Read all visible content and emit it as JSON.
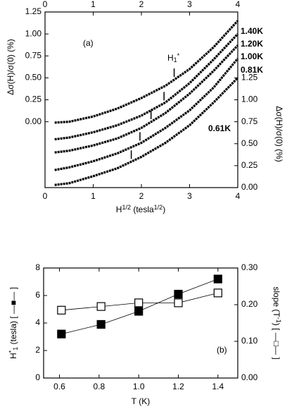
{
  "chart_data": [
    {
      "type": "line",
      "annotation": "(a)",
      "marker_label": [
        {
          "text": "H"
        },
        {
          "text": "1",
          "shift": "sub"
        },
        {
          "text": "*",
          "shift": "sup"
        }
      ],
      "xlabel": [
        {
          "text": "H"
        },
        {
          "text": "1/2",
          "shift": "sup"
        },
        {
          "text": " (tesla"
        },
        {
          "text": "1/2",
          "shift": "sup"
        },
        {
          "text": ")"
        }
      ],
      "ylabel": "Δσ(H)/σ(0)  (%)",
      "y2label": "Δσ(H)/σ(0)  (%)",
      "x": [
        0.2,
        0.5,
        1,
        1.5,
        2,
        2.5,
        3,
        3.5,
        4
      ],
      "xlim": [
        0,
        4
      ],
      "xticks": [
        0,
        1,
        2,
        3,
        4
      ],
      "ylim": [
        -0.75,
        1.25
      ],
      "yticks": [
        {
          "value": 0,
          "label": "0.00"
        },
        {
          "value": 0.25,
          "label": "0.25"
        },
        {
          "value": 0.5,
          "label": "0.50"
        },
        {
          "value": 0.75,
          "label": "0.75"
        },
        {
          "value": 1,
          "label": "1.00"
        },
        {
          "value": 1.25,
          "label": "1.25"
        }
      ],
      "y2lim": [
        0,
        2
      ],
      "y2ticks": [
        {
          "value": 0,
          "label": "0.00"
        },
        {
          "value": 0.25,
          "label": "0.25"
        },
        {
          "value": 0.5,
          "label": "0.50"
        },
        {
          "value": 0.75,
          "label": "0.75"
        },
        {
          "value": 1,
          "label": "1.00"
        },
        {
          "value": 1.25,
          "label": "1.25"
        }
      ],
      "series": [
        {
          "name": "1.40K",
          "color": "#000000",
          "values": [
            -0.01,
            0.0,
            0.06,
            0.15,
            0.27,
            0.41,
            0.6,
            0.85,
            1.15
          ],
          "marker_x": 2.68
        },
        {
          "name": "1.20K",
          "color": "#000000",
          "values": [
            -0.2,
            -0.18,
            -0.12,
            -0.04,
            0.07,
            0.22,
            0.44,
            0.71,
            1.0
          ],
          "marker_x": 2.47
        },
        {
          "name": "1.00K",
          "color": "#000000",
          "values": [
            -0.35,
            -0.33,
            -0.27,
            -0.19,
            -0.07,
            0.1,
            0.32,
            0.58,
            0.87
          ],
          "marker_x": 2.2
        },
        {
          "name": "0.81K",
          "color": "#000000",
          "values": [
            -0.55,
            -0.52,
            -0.45,
            -0.36,
            -0.24,
            -0.07,
            0.13,
            0.39,
            0.72
          ],
          "marker_x": 1.97
        },
        {
          "name": "0.61K",
          "color": "#000000",
          "values": [
            -0.72,
            -0.7,
            -0.62,
            -0.53,
            -0.4,
            -0.24,
            -0.04,
            0.22,
            0.5
          ],
          "marker_x": 1.79
        }
      ]
    },
    {
      "type": "scatter",
      "annotation": "(b)",
      "xlabel": [
        {
          "text": "T (K)"
        }
      ],
      "ylabel": [
        {
          "text": "H"
        },
        {
          "text": "*",
          "shift": "sup"
        },
        {
          "text": "1",
          "shift": "sub"
        },
        {
          "text": " (tesla) [ —■— ]"
        }
      ],
      "y2label": [
        {
          "text": "slope (T"
        },
        {
          "text": "-1",
          "shift": "sup"
        },
        {
          "text": ") [ —□— ]"
        }
      ],
      "x": [
        0.61,
        0.81,
        1.0,
        1.2,
        1.4
      ],
      "xlim": [
        0.52,
        1.5
      ],
      "xticks": [
        0.6,
        0.8,
        {
          "value": 1,
          "label": "1.0"
        },
        1.2,
        1.4
      ],
      "ylim": [
        0,
        8
      ],
      "yticks": [
        0,
        2,
        4,
        6,
        8
      ],
      "y2lim": [
        0,
        0.3
      ],
      "y2ticks": [
        {
          "value": 0,
          "label": "0.00"
        },
        {
          "value": 0.1,
          "label": "0.10"
        },
        {
          "value": 0.2,
          "label": "0.20"
        },
        {
          "value": 0.3,
          "label": "0.30"
        }
      ],
      "series": [
        {
          "color": "#000000",
          "marker": "filled",
          "values": [
            3.2,
            3.9,
            4.85,
            6.1,
            7.2
          ]
        },
        {
          "color": "#000000",
          "marker": "open",
          "axis": "y2",
          "values": [
            0.185,
            0.195,
            0.205,
            0.205,
            0.232
          ]
        }
      ]
    }
  ]
}
